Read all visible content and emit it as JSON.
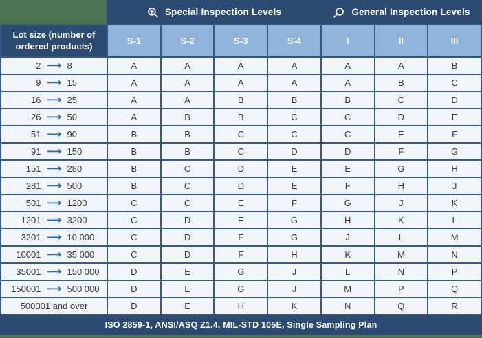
{
  "colors": {
    "page_background_green": "#4a7150",
    "header_navy": "#2b4b73",
    "column_header_blue": "#8fb3da",
    "grid_border": "#35598c",
    "row_background": "#f2f6fb",
    "arrow_blue": "#1e6fb8"
  },
  "header": {
    "special": {
      "label": "Special Inspection Levels",
      "icon": "zoom-in-icon"
    },
    "general": {
      "label": "General Inspection Levels",
      "icon": "search-icon"
    }
  },
  "table": {
    "lot_header": "Lot size (number of ordered products)",
    "arrow_glyph": "⟶",
    "columns": [
      "S-1",
      "S-2",
      "S-3",
      "S-4",
      "I",
      "II",
      "III"
    ],
    "rows": [
      {
        "from": "2",
        "to": "8",
        "values": [
          "A",
          "A",
          "A",
          "A",
          "A",
          "A",
          "B"
        ]
      },
      {
        "from": "9",
        "to": "15",
        "values": [
          "A",
          "A",
          "A",
          "A",
          "A",
          "B",
          "C"
        ]
      },
      {
        "from": "16",
        "to": "25",
        "values": [
          "A",
          "A",
          "B",
          "B",
          "B",
          "C",
          "D"
        ]
      },
      {
        "from": "26",
        "to": "50",
        "values": [
          "A",
          "B",
          "B",
          "C",
          "C",
          "D",
          "E"
        ]
      },
      {
        "from": "51",
        "to": "90",
        "values": [
          "B",
          "B",
          "C",
          "C",
          "C",
          "E",
          "F"
        ]
      },
      {
        "from": "91",
        "to": "150",
        "values": [
          "B",
          "B",
          "C",
          "D",
          "D",
          "F",
          "G"
        ]
      },
      {
        "from": "151",
        "to": "280",
        "values": [
          "B",
          "C",
          "D",
          "E",
          "E",
          "G",
          "H"
        ]
      },
      {
        "from": "281",
        "to": "500",
        "values": [
          "B",
          "C",
          "D",
          "E",
          "F",
          "H",
          "J"
        ]
      },
      {
        "from": "501",
        "to": "1200",
        "values": [
          "C",
          "C",
          "E",
          "F",
          "G",
          "J",
          "K"
        ]
      },
      {
        "from": "1201",
        "to": "3200",
        "values": [
          "C",
          "D",
          "E",
          "G",
          "H",
          "K",
          "L"
        ]
      },
      {
        "from": "3201",
        "to": "10 000",
        "values": [
          "C",
          "D",
          "F",
          "G",
          "J",
          "L",
          "M"
        ]
      },
      {
        "from": "10001",
        "to": "35 000",
        "values": [
          "C",
          "D",
          "F",
          "H",
          "K",
          "M",
          "N"
        ]
      },
      {
        "from": "35001",
        "to": "150 000",
        "values": [
          "D",
          "E",
          "G",
          "J",
          "L",
          "N",
          "P"
        ]
      },
      {
        "from": "150001",
        "to": "500 000",
        "values": [
          "D",
          "E",
          "G",
          "J",
          "M",
          "P",
          "Q"
        ]
      },
      {
        "label": "500001 and over",
        "values": [
          "D",
          "E",
          "H",
          "K",
          "N",
          "Q",
          "R"
        ]
      }
    ]
  },
  "footer": {
    "text": "ISO 2859-1, ANSI/ASQ Z1.4, MIL-STD 105E, Single Sampling Plan"
  }
}
